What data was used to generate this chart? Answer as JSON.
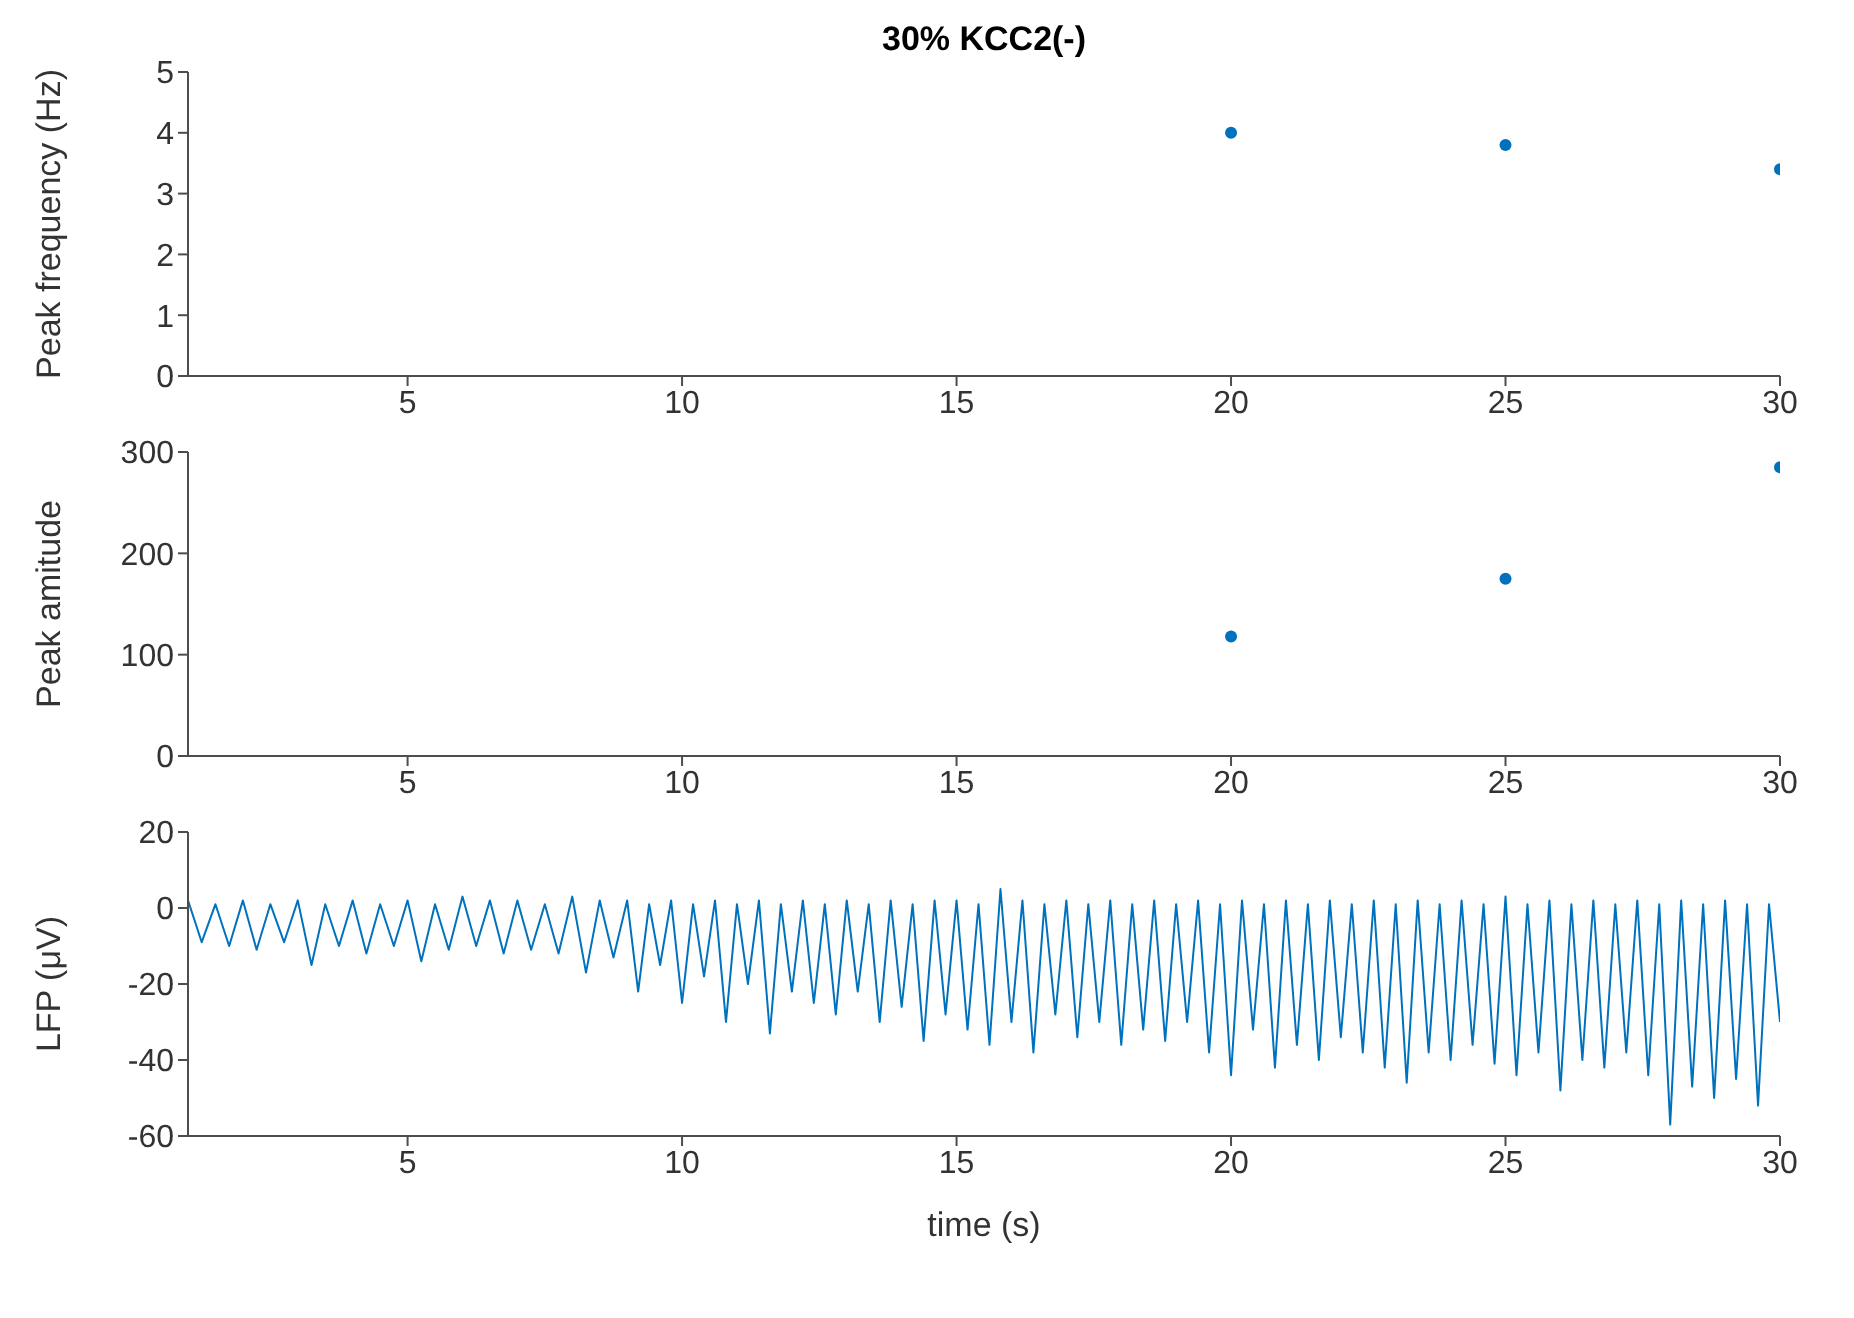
{
  "chart_data": [
    {
      "type": "scatter",
      "title": "30% KCC2(-)",
      "ylabel": "Peak frequency (Hz)",
      "x": [
        20,
        25,
        30
      ],
      "values": [
        4.0,
        3.8,
        3.4
      ],
      "color": "#0072bd",
      "marker": "circle",
      "xlim": [
        1,
        30
      ],
      "xticks": [
        5,
        10,
        15,
        20,
        25,
        30
      ],
      "ylim": [
        0,
        5
      ],
      "yticks": [
        0,
        1,
        2,
        3,
        4,
        5
      ]
    },
    {
      "type": "scatter",
      "ylabel": "Peak amitude",
      "x": [
        20,
        25,
        30
      ],
      "values": [
        118,
        175,
        285
      ],
      "color": "#0072bd",
      "marker": "circle",
      "xlim": [
        1,
        30
      ],
      "xticks": [
        5,
        10,
        15,
        20,
        25,
        30
      ],
      "ylim": [
        0,
        300
      ],
      "yticks": [
        0,
        100,
        200,
        300
      ]
    },
    {
      "type": "line",
      "ylabel": "LFP (μV)",
      "xlabel": "time (s)",
      "xlim": [
        1,
        30
      ],
      "xticks": [
        5,
        10,
        15,
        20,
        25,
        30
      ],
      "ylim": [
        -60,
        20
      ],
      "yticks": [
        -60,
        -40,
        -20,
        0,
        20
      ],
      "series": [
        {
          "color": "#0072bd",
          "x": [
            1.0,
            1.25,
            1.5,
            1.75,
            2.0,
            2.25,
            2.5,
            2.75,
            3.0,
            3.25,
            3.5,
            3.75,
            4.0,
            4.25,
            4.5,
            4.75,
            5.0,
            5.25,
            5.5,
            5.75,
            6.0,
            6.25,
            6.5,
            6.75,
            7.0,
            7.25,
            7.5,
            7.75,
            8.0,
            8.25,
            8.5,
            8.75,
            9.0,
            9.2,
            9.4,
            9.6,
            9.8,
            10.0,
            10.2,
            10.4,
            10.6,
            10.8,
            11.0,
            11.2,
            11.4,
            11.6,
            11.8,
            12.0,
            12.2,
            12.4,
            12.6,
            12.8,
            13.0,
            13.2,
            13.4,
            13.6,
            13.8,
            14.0,
            14.2,
            14.4,
            14.6,
            14.8,
            15.0,
            15.2,
            15.4,
            15.6,
            15.8,
            16.0,
            16.2,
            16.4,
            16.6,
            16.8,
            17.0,
            17.2,
            17.4,
            17.6,
            17.8,
            18.0,
            18.2,
            18.4,
            18.6,
            18.8,
            19.0,
            19.2,
            19.4,
            19.6,
            19.8,
            20.0,
            20.2,
            20.4,
            20.6,
            20.8,
            21.0,
            21.2,
            21.4,
            21.6,
            21.8,
            22.0,
            22.2,
            22.4,
            22.6,
            22.8,
            23.0,
            23.2,
            23.4,
            23.6,
            23.8,
            24.0,
            24.2,
            24.4,
            24.6,
            24.8,
            25.0,
            25.2,
            25.4,
            25.6,
            25.8,
            26.0,
            26.2,
            26.4,
            26.6,
            26.8,
            27.0,
            27.2,
            27.4,
            27.6,
            27.8,
            28.0,
            28.2,
            28.4,
            28.6,
            28.8,
            29.0,
            29.2,
            29.4,
            29.6,
            29.8,
            30.0
          ],
          "values": [
            2,
            -9,
            1,
            -10,
            2,
            -11,
            1,
            -9,
            2,
            -15,
            1,
            -10,
            2,
            -12,
            1,
            -10,
            2,
            -14,
            1,
            -11,
            3,
            -10,
            2,
            -12,
            2,
            -11,
            1,
            -12,
            3,
            -17,
            2,
            -13,
            2,
            -22,
            1,
            -15,
            2,
            -25,
            1,
            -18,
            2,
            -30,
            1,
            -20,
            2,
            -33,
            1,
            -22,
            2,
            -25,
            1,
            -28,
            2,
            -22,
            1,
            -30,
            2,
            -26,
            1,
            -35,
            2,
            -28,
            2,
            -32,
            1,
            -36,
            5,
            -30,
            2,
            -38,
            1,
            -28,
            2,
            -34,
            1,
            -30,
            2,
            -36,
            1,
            -32,
            2,
            -35,
            1,
            -30,
            2,
            -38,
            1,
            -44,
            2,
            -32,
            1,
            -42,
            2,
            -36,
            1,
            -40,
            2,
            -34,
            1,
            -38,
            2,
            -42,
            1,
            -46,
            2,
            -38,
            1,
            -40,
            2,
            -36,
            1,
            -41,
            3,
            -44,
            1,
            -38,
            2,
            -48,
            1,
            -40,
            2,
            -42,
            1,
            -38,
            2,
            -44,
            1,
            -57,
            2,
            -47,
            1,
            -50,
            2,
            -45,
            1,
            -52,
            1,
            -30
          ]
        }
      ]
    }
  ]
}
